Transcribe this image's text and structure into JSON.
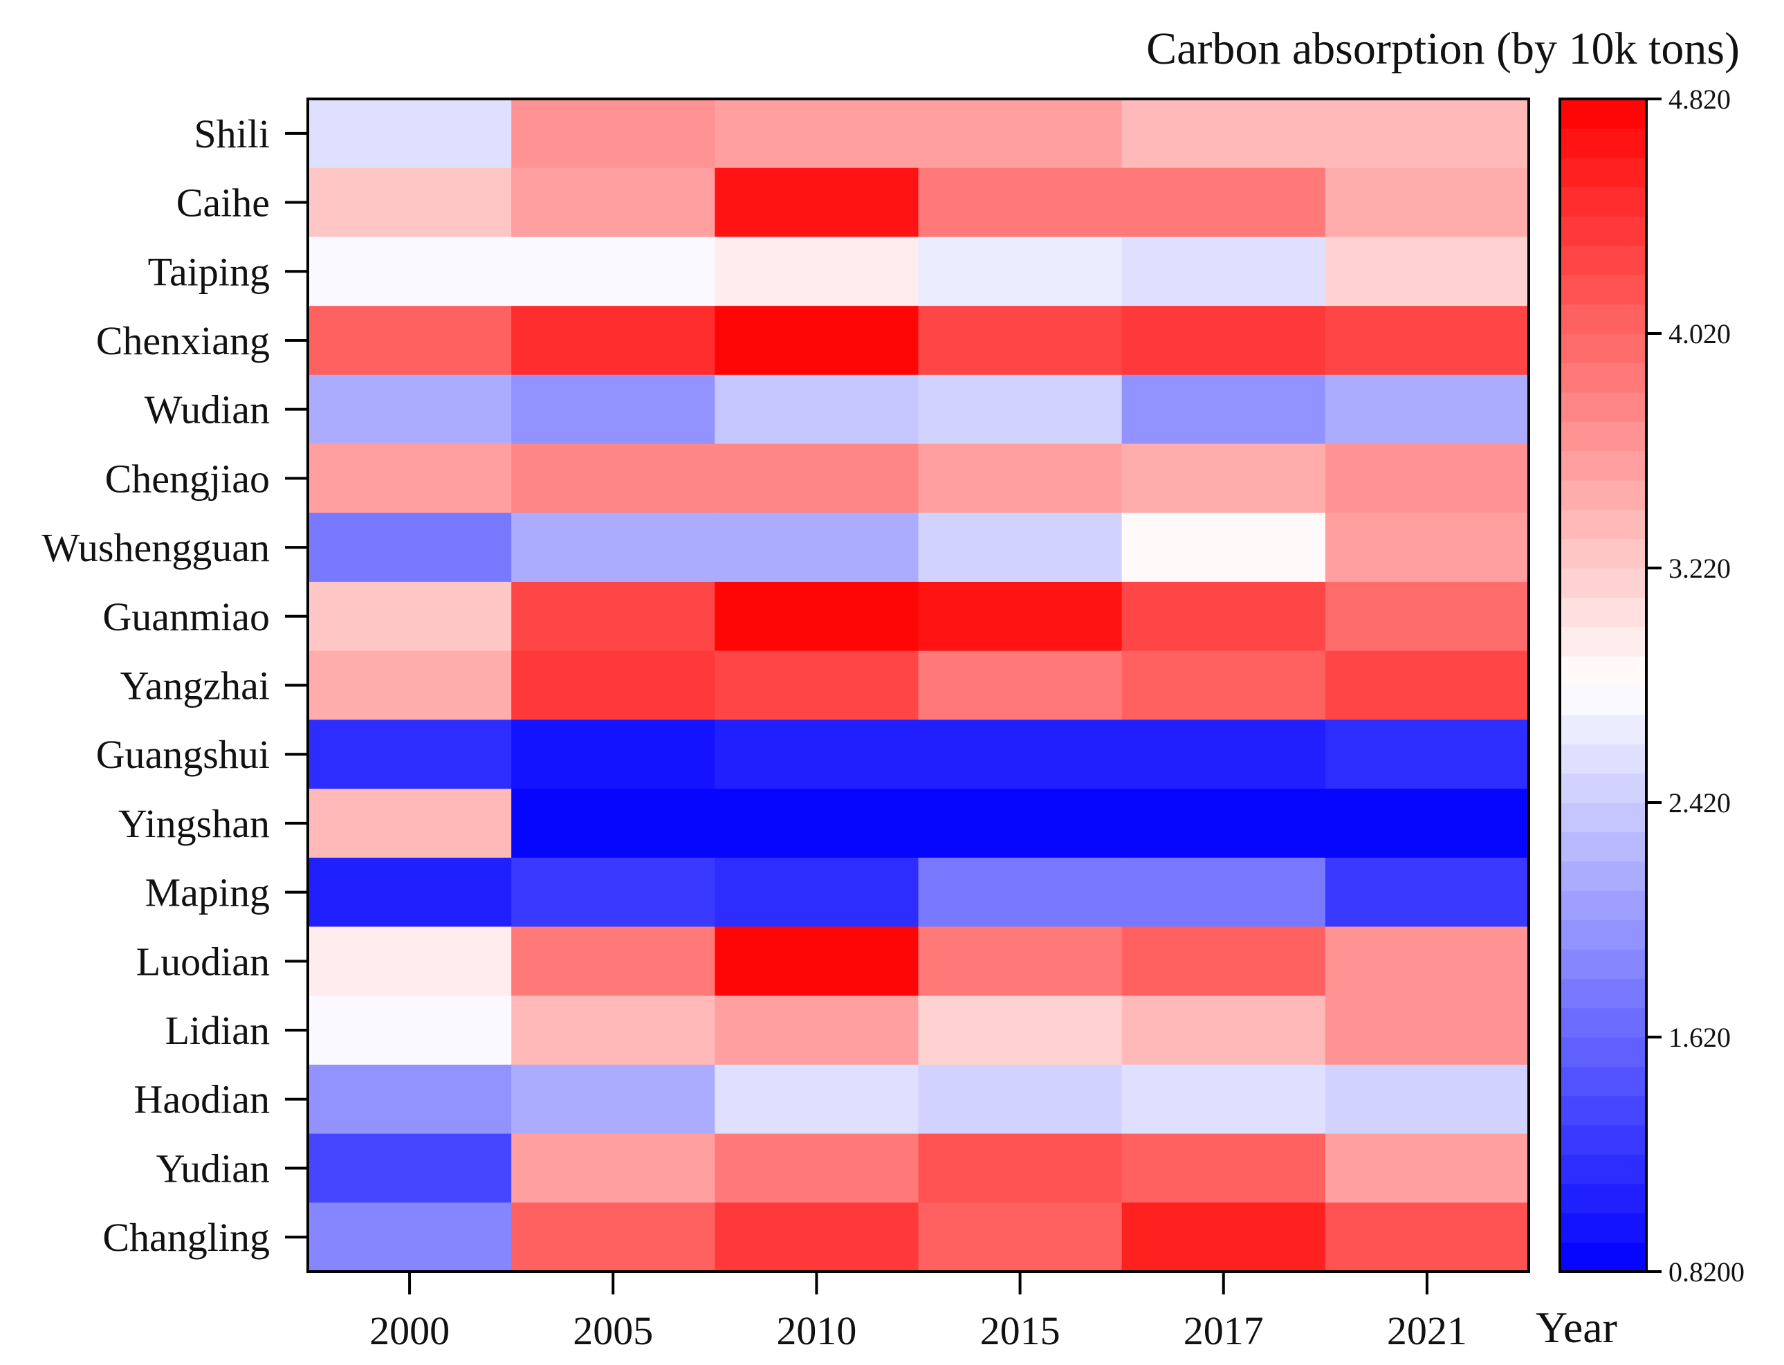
{
  "chart_data": {
    "type": "heatmap",
    "title": "Carbon absorption (by 10k tons)",
    "xlabel": "Year",
    "ylabel": "",
    "x_categories": [
      "2000",
      "2005",
      "2010",
      "2015",
      "2017",
      "2021"
    ],
    "y_categories": [
      "Shili",
      "Caihe",
      "Taiping",
      "Chenxiang",
      "Wudian",
      "Chengjiao",
      "Wushengguan",
      "Guanmiao",
      "Yangzhai",
      "Guangshui",
      "Yingshan",
      "Maping",
      "Luodian",
      "Lidian",
      "Haodian",
      "Yudian",
      "Changling"
    ],
    "values": [
      [
        2.55,
        3.7,
        3.55,
        3.55,
        3.4,
        3.35
      ],
      [
        3.25,
        3.55,
        4.7,
        3.85,
        3.9,
        3.45
      ],
      [
        2.75,
        2.75,
        2.95,
        2.7,
        2.55,
        3.15
      ],
      [
        4.05,
        4.5,
        4.8,
        4.25,
        4.35,
        4.25
      ],
      [
        2.2,
        2.0,
        2.35,
        2.45,
        1.95,
        2.15
      ],
      [
        3.6,
        3.8,
        3.8,
        3.6,
        3.45,
        3.7
      ],
      [
        1.75,
        2.2,
        2.2,
        2.45,
        2.85,
        3.55
      ],
      [
        3.25,
        4.3,
        4.8,
        4.65,
        4.25,
        3.95
      ],
      [
        3.45,
        4.4,
        4.25,
        3.9,
        4.05,
        4.25
      ],
      [
        1.15,
        1.0,
        1.05,
        1.05,
        1.05,
        1.2
      ],
      [
        3.4,
        0.85,
        0.88,
        0.88,
        0.85,
        0.85
      ],
      [
        1.1,
        1.25,
        1.12,
        1.75,
        1.75,
        1.25
      ],
      [
        2.95,
        3.9,
        4.8,
        3.9,
        4.05,
        3.7
      ],
      [
        2.75,
        3.35,
        3.55,
        3.2,
        3.35,
        3.7
      ],
      [
        2.0,
        2.2,
        2.6,
        2.45,
        2.6,
        2.45
      ],
      [
        1.35,
        3.55,
        3.9,
        4.15,
        4.05,
        3.55
      ],
      [
        1.85,
        4.1,
        4.35,
        4.1,
        4.6,
        4.2
      ]
    ],
    "colorbar": {
      "min": 0.82,
      "max": 4.82,
      "ticks": [
        0.82,
        1.62,
        2.42,
        3.22,
        4.02,
        4.82
      ],
      "tick_labels": [
        "0.8200",
        "1.620",
        "2.420",
        "3.220",
        "4.020",
        "4.820"
      ],
      "levels": 40,
      "colormap": "bwr",
      "low_color": "#0000ff",
      "mid_color": "#ffffff",
      "high_color": "#ff0000"
    },
    "grid": false,
    "legend": "colorbar at right"
  }
}
